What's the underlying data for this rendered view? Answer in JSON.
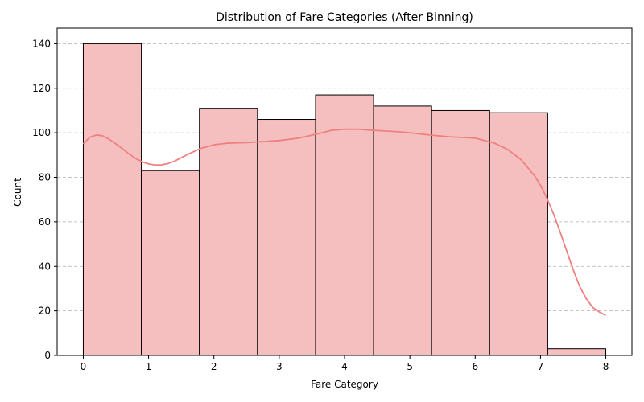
{
  "chart_data": {
    "type": "bar",
    "title": "Distribution of Fare Categories (After Binning)",
    "xlabel": "Fare Category",
    "ylabel": "Count",
    "xlim": [
      -0.4,
      8.4
    ],
    "ylim": [
      0,
      147
    ],
    "xticks": [
      0,
      1,
      2,
      3,
      4,
      5,
      6,
      7,
      8
    ],
    "yticks": [
      0,
      20,
      40,
      60,
      80,
      100,
      120,
      140
    ],
    "grid": "y-dashed",
    "bins": [
      {
        "x0": 0.0,
        "x1": 0.889,
        "count": 140
      },
      {
        "x0": 0.889,
        "x1": 1.778,
        "count": 83
      },
      {
        "x0": 1.778,
        "x1": 2.667,
        "count": 111
      },
      {
        "x0": 2.667,
        "x1": 3.556,
        "count": 106
      },
      {
        "x0": 3.556,
        "x1": 4.444,
        "count": 117
      },
      {
        "x0": 4.444,
        "x1": 5.333,
        "count": 112
      },
      {
        "x0": 5.333,
        "x1": 6.222,
        "count": 110
      },
      {
        "x0": 6.222,
        "x1": 7.111,
        "count": 109
      },
      {
        "x0": 7.111,
        "x1": 8.0,
        "count": 3
      }
    ],
    "kde": {
      "x": [
        0,
        0.1,
        0.2,
        0.3,
        0.4,
        0.5,
        0.6,
        0.7,
        0.8,
        0.9,
        1.0,
        1.1,
        1.2,
        1.3,
        1.4,
        1.6,
        1.8,
        2.0,
        2.2,
        2.5,
        2.8,
        3.0,
        3.3,
        3.6,
        3.8,
        4.0,
        4.2,
        4.5,
        4.8,
        5.0,
        5.3,
        5.6,
        6.0,
        6.3,
        6.5,
        6.7,
        6.9,
        7.0,
        7.1,
        7.2,
        7.3,
        7.4,
        7.5,
        7.6,
        7.7,
        7.8,
        7.9,
        8.0
      ],
      "y": [
        95,
        98,
        99,
        98.6,
        97,
        95,
        92.8,
        90.5,
        88.5,
        87,
        86,
        85.5,
        85.6,
        86.2,
        87.3,
        90.3,
        93,
        94.6,
        95.3,
        95.6,
        96.1,
        96.5,
        97.6,
        99.6,
        101.1,
        101.6,
        101.6,
        101,
        100.5,
        100,
        99,
        98.2,
        97.6,
        95.3,
        92.5,
        88,
        81,
        76.5,
        70.5,
        63.5,
        55.5,
        47,
        38.5,
        31,
        25.5,
        21.5,
        19.5,
        18
      ]
    },
    "colors": {
      "bar_fill": "#f6bfbf",
      "bar_edge": "#000000",
      "kde_line": "#f08080",
      "grid": "#b0b0b0"
    }
  }
}
